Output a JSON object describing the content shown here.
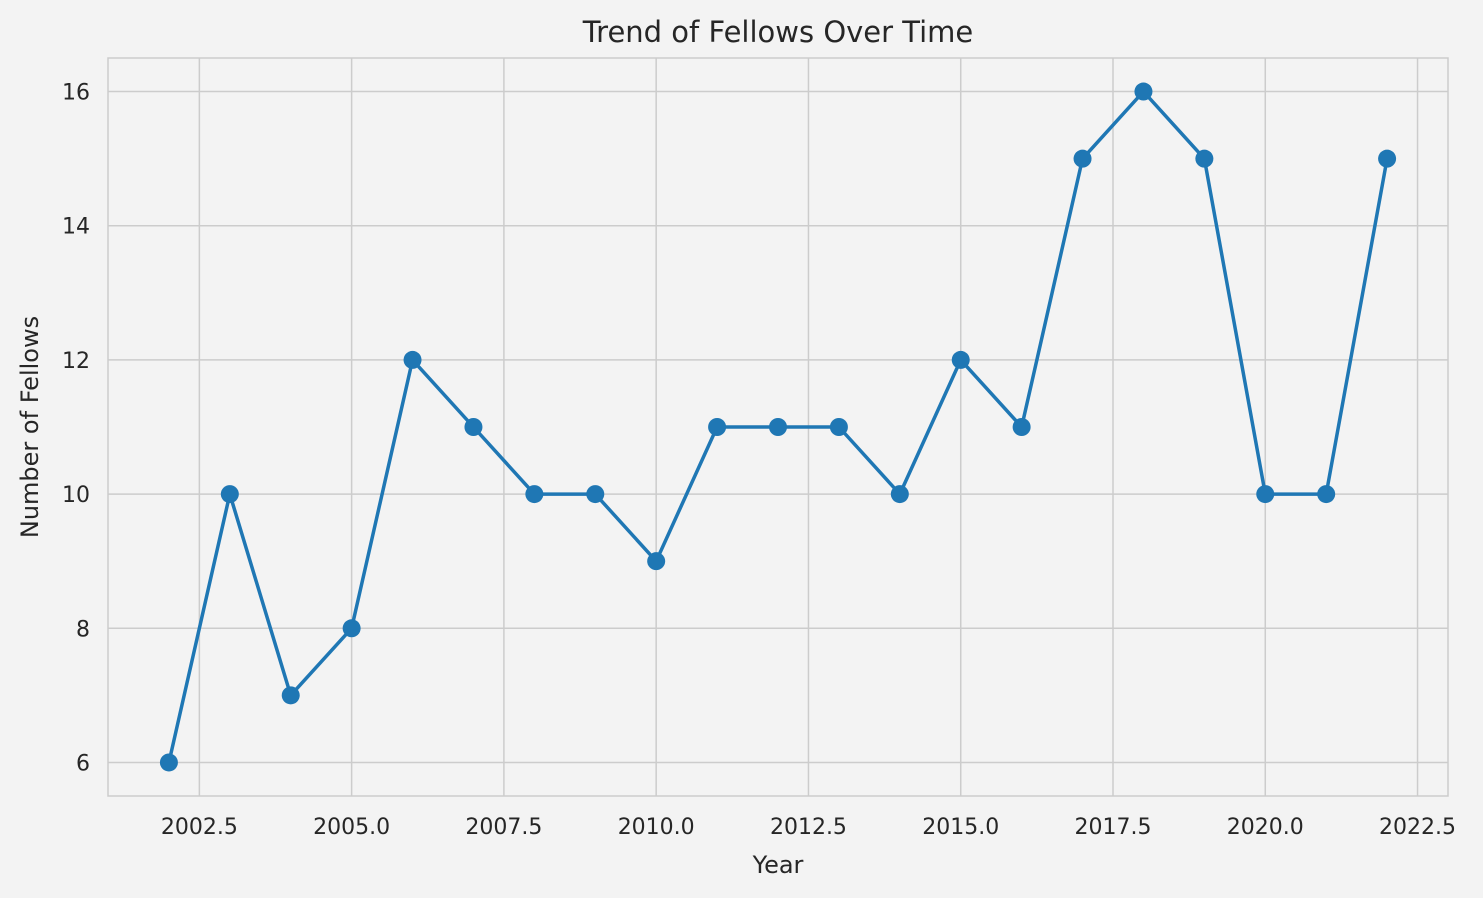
{
  "chart_data": {
    "type": "line",
    "title": "Trend of Fellows Over Time",
    "xlabel": "Year",
    "ylabel": "Number of Fellows",
    "xlim": [
      2001.0,
      2023.0
    ],
    "ylim": [
      5.5,
      16.5
    ],
    "xticks": [
      2002.5,
      2005.0,
      2007.5,
      2010.0,
      2012.5,
      2015.0,
      2017.5,
      2020.0,
      2022.5
    ],
    "xtick_labels": [
      "2002.5",
      "2005.0",
      "2007.5",
      "2010.0",
      "2012.5",
      "2015.0",
      "2017.5",
      "2020.0",
      "2022.5"
    ],
    "yticks": [
      6,
      8,
      10,
      12,
      14,
      16
    ],
    "ytick_labels": [
      "6",
      "8",
      "10",
      "12",
      "14",
      "16"
    ],
    "grid": true,
    "legend": "none",
    "line_color": "#1f77b4",
    "background_color": "#f3f3f3",
    "grid_color": "#cccccc",
    "series": [
      {
        "x": [
          2002,
          2003,
          2004,
          2005,
          2006,
          2007,
          2008,
          2009,
          2010,
          2011,
          2012,
          2013,
          2014,
          2015,
          2016,
          2017,
          2018,
          2019,
          2020,
          2021,
          2022
        ],
        "values": [
          6,
          10,
          7,
          8,
          12,
          11,
          10,
          10,
          9,
          11,
          11,
          11,
          10,
          12,
          11,
          15,
          16,
          15,
          10,
          10,
          15
        ]
      }
    ]
  }
}
